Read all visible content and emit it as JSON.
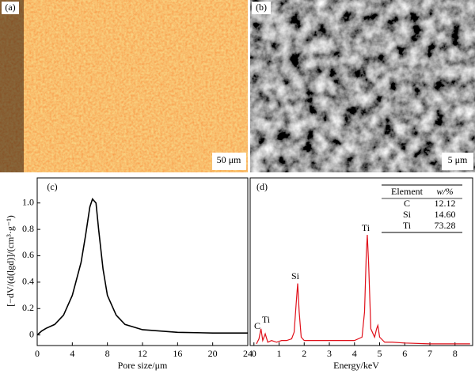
{
  "images": [
    {
      "label": "(a)",
      "scale": "50 μm"
    },
    {
      "label": "(b)",
      "scale": "5 μm"
    }
  ],
  "chart_data": [
    {
      "type": "line",
      "label": "(c)",
      "xlabel": "Pore size/μm",
      "ylabel": "[−dV/(d(lgd)]/(cm³·g⁻¹)",
      "x": [
        0,
        0.5,
        1,
        2,
        3,
        4,
        5,
        5.5,
        6,
        6.3,
        6.7,
        7,
        7.5,
        8,
        9,
        10,
        12,
        16,
        20,
        24
      ],
      "values": [
        0,
        0.03,
        0.05,
        0.08,
        0.15,
        0.3,
        0.55,
        0.75,
        0.97,
        1.03,
        1.0,
        0.8,
        0.5,
        0.3,
        0.15,
        0.08,
        0.04,
        0.02,
        0.015,
        0.015
      ],
      "color": "#000000",
      "xlim": [
        0,
        24
      ],
      "xticks": [
        0,
        4,
        8,
        12,
        16,
        20,
        24
      ],
      "ylim": [
        -0.08,
        1.19
      ],
      "yticks": [
        0,
        0.2,
        0.4,
        0.6,
        0.8,
        {
          "value": 1,
          "label": "1.0"
        }
      ]
    },
    {
      "type": "spectrum",
      "label": "(d)",
      "xlabel": "Energy/keV",
      "x": [
        0.1,
        0.2,
        0.28,
        0.35,
        0.45,
        0.55,
        0.7,
        0.9,
        1.1,
        1.3,
        1.5,
        1.6,
        1.68,
        1.74,
        1.8,
        1.88,
        2.0,
        2.5,
        3.0,
        3.5,
        4.0,
        4.3,
        4.4,
        4.47,
        4.51,
        4.56,
        4.65,
        4.8,
        4.88,
        4.93,
        5.0,
        5.2,
        5.5,
        6.0,
        7,
        8,
        8.6
      ],
      "values": [
        1,
        4,
        10,
        3,
        7,
        2,
        3,
        2,
        3,
        3,
        4,
        8,
        25,
        37,
        20,
        5,
        3,
        3,
        3,
        3,
        3,
        5,
        20,
        55,
        66,
        50,
        10,
        5,
        10,
        12,
        5,
        2,
        2,
        1.5,
        1,
        1,
        1
      ],
      "color": "#e0101a",
      "xlim": [
        -0.15,
        8.7
      ],
      "xticks": [
        0,
        1,
        2,
        3,
        4,
        5,
        6,
        7,
        8
      ],
      "ylim": [
        0,
        100
      ],
      "annotations": [
        "C",
        "Ti",
        "Si",
        "Ti"
      ],
      "table": {
        "header": [
          "Element",
          "w/%"
        ],
        "rows": [
          [
            "C",
            "12.12"
          ],
          [
            "Si",
            "14.60"
          ],
          [
            "Ti",
            "73.28"
          ]
        ]
      }
    }
  ]
}
